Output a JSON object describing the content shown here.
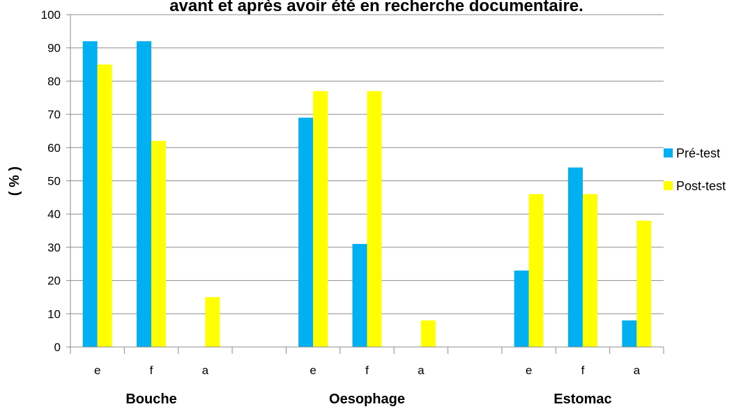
{
  "chart_data": {
    "type": "bar",
    "title": "avant et après avoir été en recherche documentaire.",
    "ylabel": "( % )",
    "xlabel": "",
    "ylim": [
      0,
      100
    ],
    "yticks": [
      0,
      10,
      20,
      30,
      40,
      50,
      60,
      70,
      80,
      90,
      100
    ],
    "grid": true,
    "legend_position": "right",
    "groups": [
      "Bouche",
      "",
      "Oesophage",
      "",
      "Estomac"
    ],
    "categories": [
      "e",
      "f",
      "a",
      "",
      "e",
      "f",
      "a",
      "",
      "e",
      "f",
      "a"
    ],
    "series": [
      {
        "name": "Pré-test",
        "color": "#00b0f0",
        "values": [
          92,
          92,
          0,
          null,
          69,
          31,
          0,
          null,
          23,
          54,
          8
        ]
      },
      {
        "name": "Post-test",
        "color": "#ffff00",
        "values": [
          85,
          62,
          15,
          null,
          77,
          77,
          8,
          null,
          46,
          46,
          38
        ]
      }
    ]
  }
}
